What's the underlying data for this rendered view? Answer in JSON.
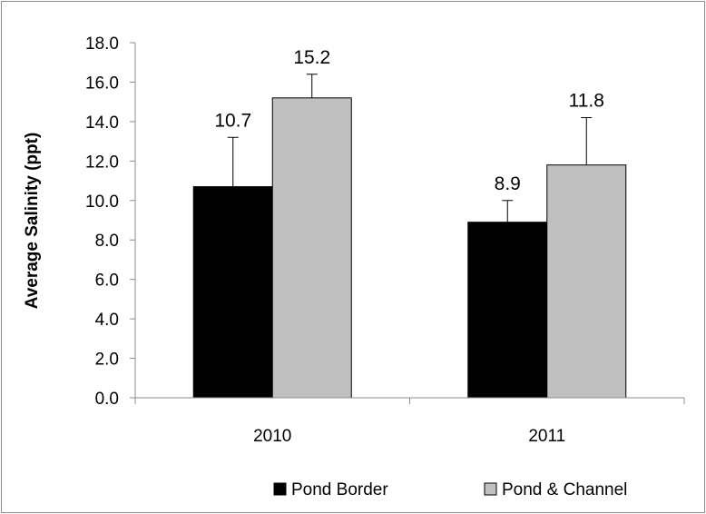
{
  "chart_data": {
    "type": "bar",
    "categories": [
      "2010",
      "2011"
    ],
    "series": [
      {
        "name": "Pond Border",
        "values": [
          10.7,
          8.9
        ],
        "errors": [
          2.5,
          1.1
        ],
        "color": "#000000"
      },
      {
        "name": "Pond & Channel",
        "values": [
          15.2,
          11.8
        ],
        "errors": [
          1.2,
          2.4
        ],
        "color": "#c0c0c0"
      }
    ],
    "data_labels": [
      [
        "10.7",
        "8.9"
      ],
      [
        "15.2",
        "11.8"
      ]
    ],
    "ylabel": "Average Salinity (ppt)",
    "xlabel": "",
    "ylim": [
      0,
      18
    ],
    "yticks": [
      "0.0",
      "2.0",
      "4.0",
      "6.0",
      "8.0",
      "10.0",
      "12.0",
      "14.0",
      "16.0",
      "18.0"
    ],
    "grid": false,
    "legend_position": "bottom"
  }
}
